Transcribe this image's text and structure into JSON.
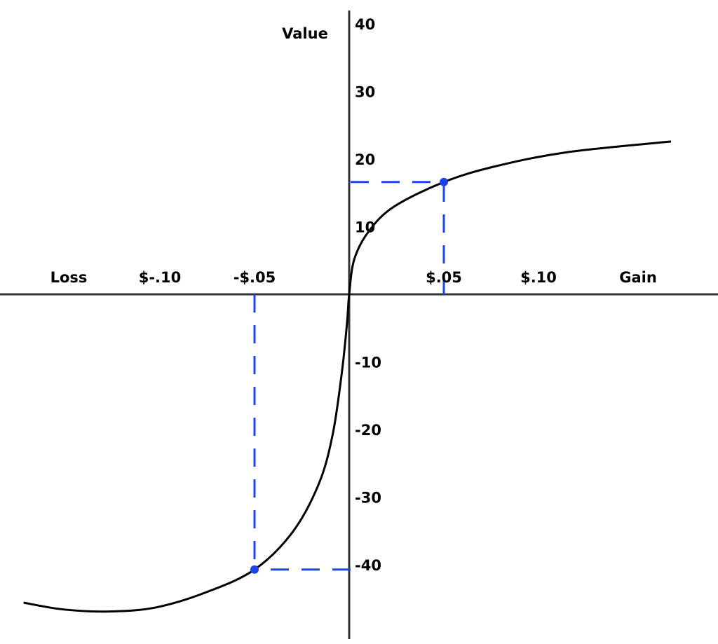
{
  "chart_data": {
    "type": "line",
    "title": "",
    "ylabel": "Value",
    "xlabel_negative": "Loss",
    "xlabel_positive": "Gain",
    "xlim": [
      -0.185,
      0.19
    ],
    "ylim": [
      -51,
      42
    ],
    "grid": false,
    "x_ticks": [
      {
        "value": -0.1,
        "label": "$-.10"
      },
      {
        "value": -0.05,
        "label": "-$.05"
      },
      {
        "value": 0.05,
        "label": "$.05"
      },
      {
        "value": 0.1,
        "label": "$.10"
      }
    ],
    "y_ticks": [
      {
        "value": 40,
        "label": "40"
      },
      {
        "value": 30,
        "label": "30"
      },
      {
        "value": 20,
        "label": "20"
      },
      {
        "value": 10,
        "label": "10"
      },
      {
        "value": -10,
        "label": "-10"
      },
      {
        "value": -20,
        "label": "-20"
      },
      {
        "value": -30,
        "label": "-30"
      },
      {
        "value": -40,
        "label": "-40"
      }
    ],
    "series": [
      {
        "color": "#000000",
        "x": [
          -0.172,
          -0.151,
          -0.127,
          -0.102,
          -0.075,
          -0.05,
          -0.03,
          -0.016,
          -0.0087,
          -0.0038,
          -0.0011,
          0,
          0.0027,
          0.0103,
          0.0236,
          0.05,
          0.0768,
          0.1148,
          0.17
        ],
        "y": [
          -45.6,
          -46.6,
          -46.9,
          -46.3,
          -44.0,
          -40.7,
          -35.2,
          -28.0,
          -20.7,
          -11.4,
          -4.1,
          0,
          5.2,
          9.3,
          12.95,
          16.6,
          18.9,
          21.0,
          22.6
        ]
      }
    ],
    "highlight_points": [
      {
        "x": 0.05,
        "y": 16.6,
        "color": "#1a44f0"
      },
      {
        "x": -0.05,
        "y": -40.7,
        "color": "#1a44f0"
      }
    ],
    "guide_line_style": "dashed"
  }
}
